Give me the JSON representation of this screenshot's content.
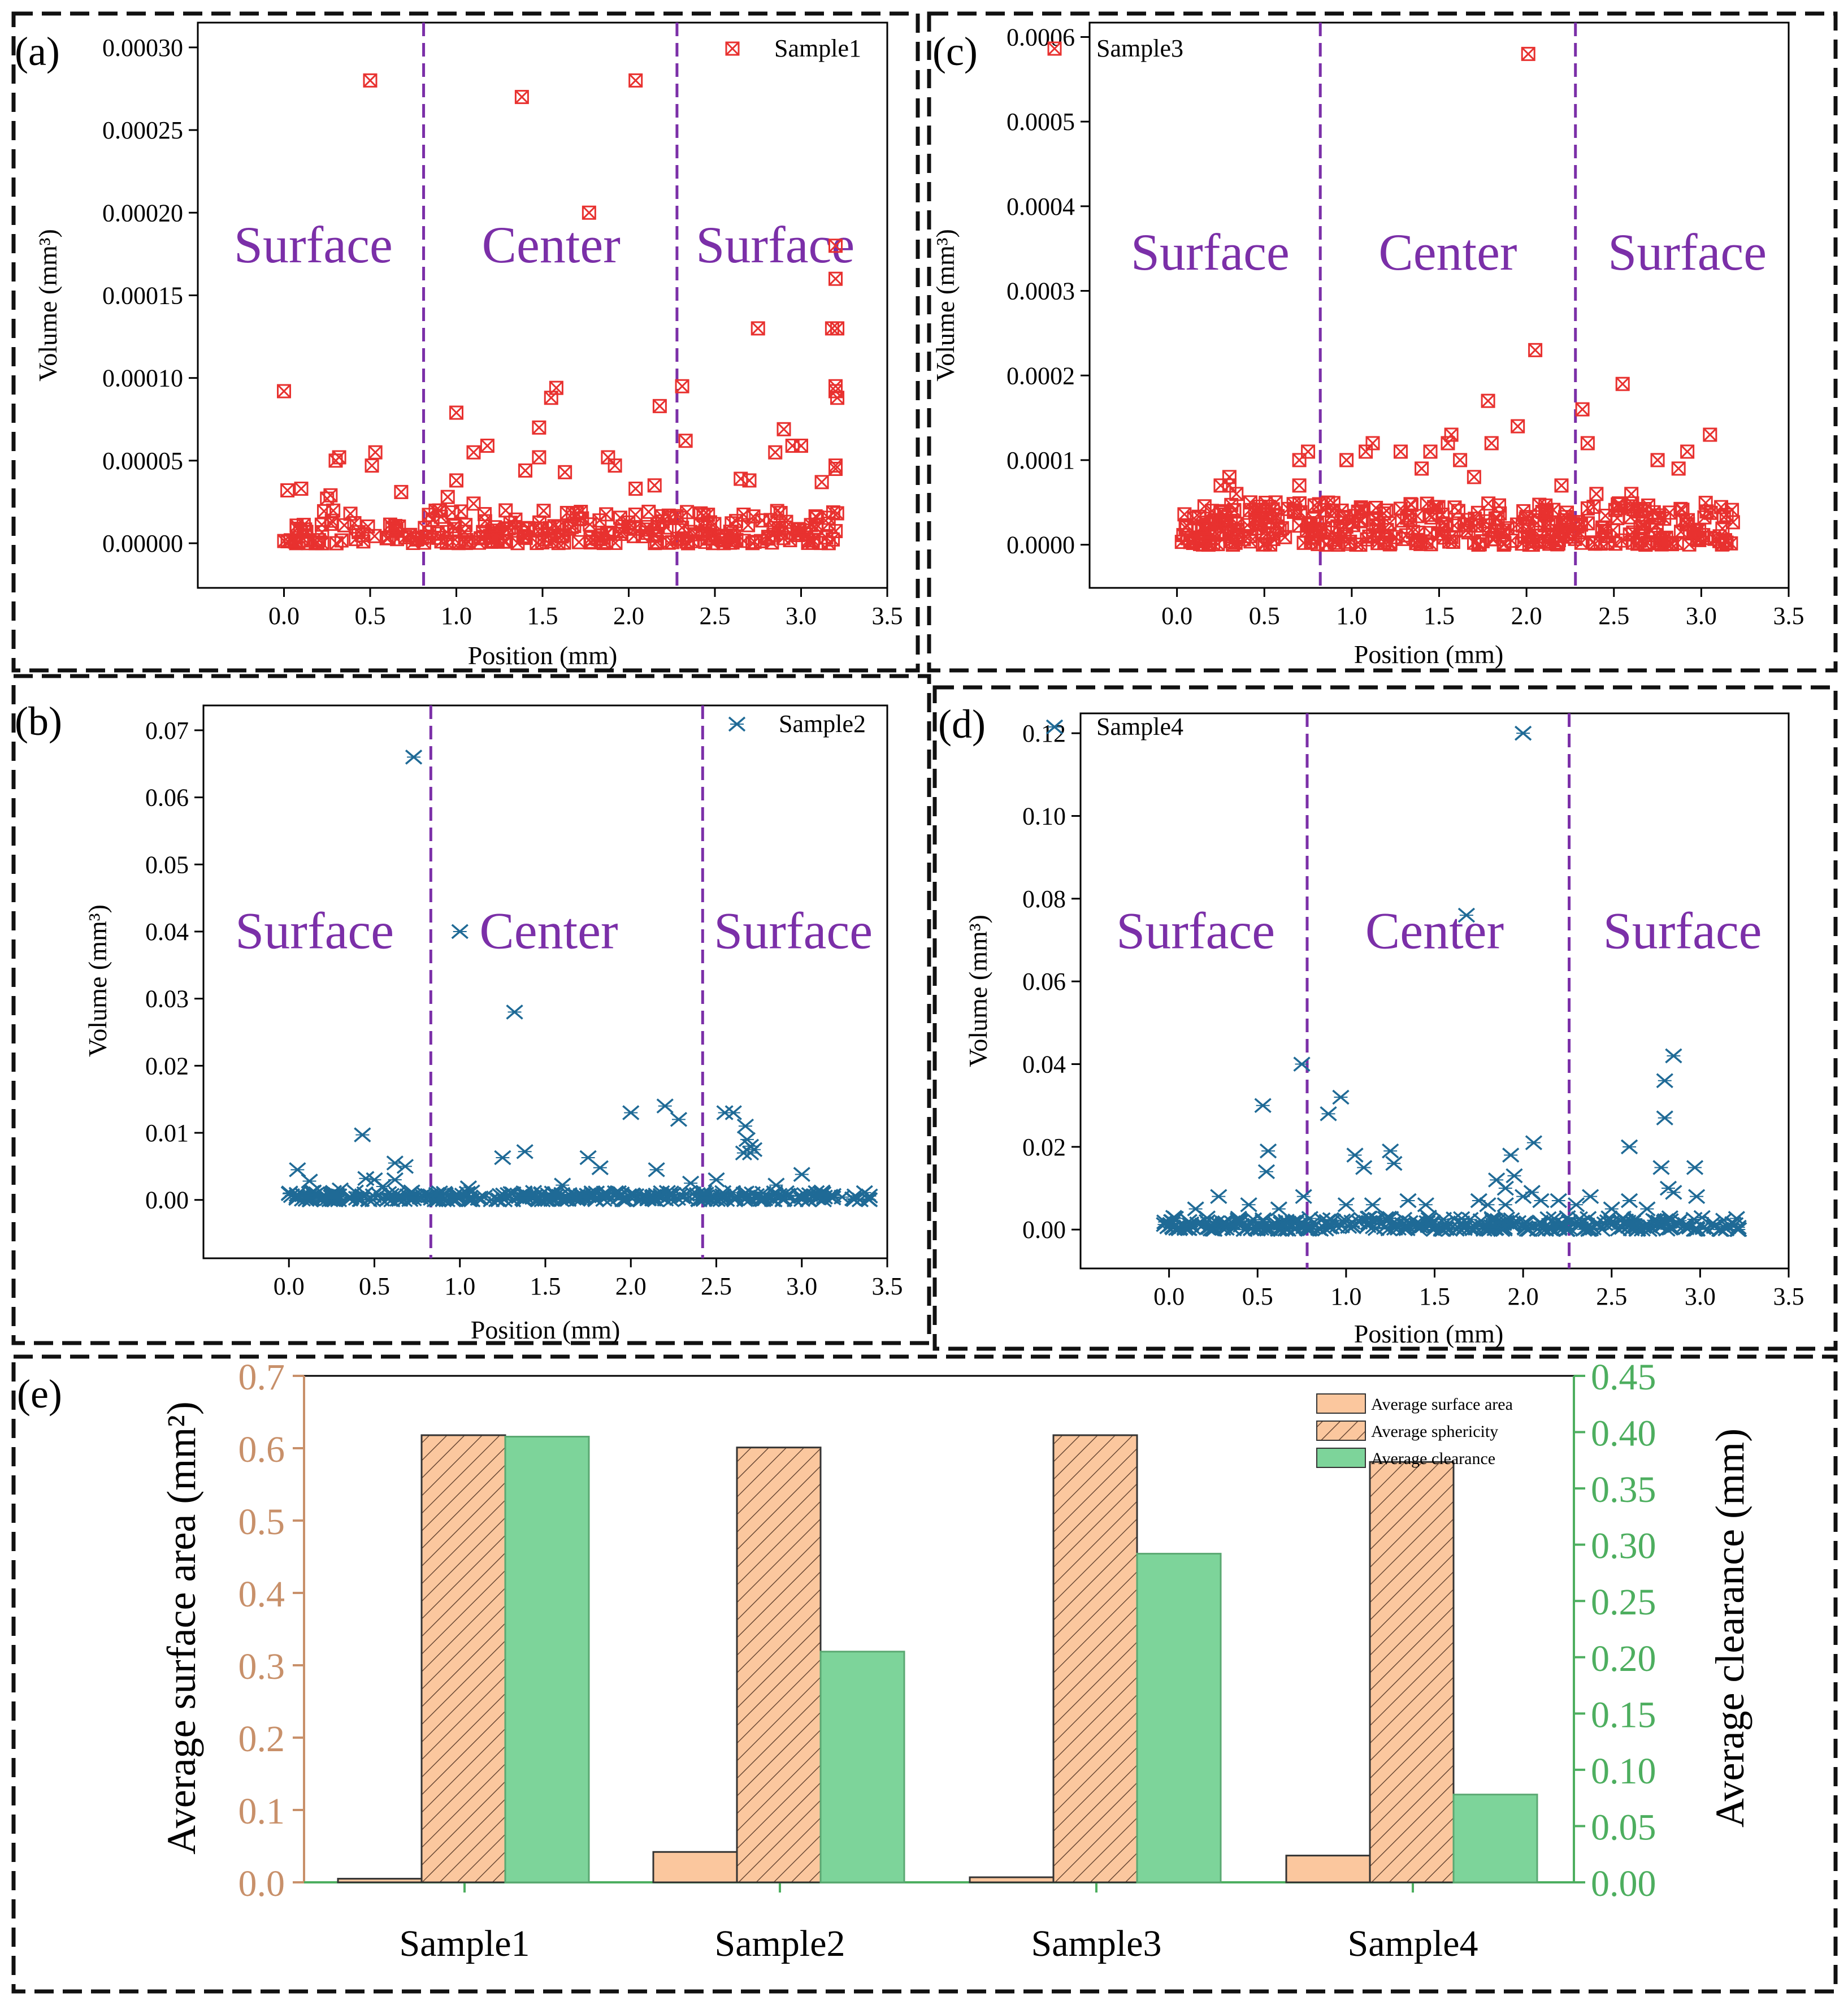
{
  "colors": {
    "scatter_red": "#e8312f",
    "scatter_blue": "#1f6a96",
    "divider": "#7b2fa8",
    "region_text": "#7b2fa8",
    "bar_orange": "#fbc79e",
    "bar_green": "#7dd49a",
    "axis_left_e": "#c8906a",
    "axis_right_e": "#4dae5f"
  },
  "chart_data": [
    {
      "panel_label": "(a)",
      "type": "scatter",
      "series": [
        {
          "name": "Sample1",
          "marker": "boxed-x",
          "color": "#e8312f"
        }
      ],
      "xlabel": "Position (mm)",
      "ylabel": "Volume (mm³)",
      "xlim": [
        -0.5,
        3.5
      ],
      "ylim": [
        -2.7e-05,
        0.000315
      ],
      "xticks": [
        0.0,
        0.5,
        1.0,
        1.5,
        2.0,
        2.5,
        3.0,
        3.5
      ],
      "xtick_labels": [
        "0.0",
        "0.5",
        "1.0",
        "1.5",
        "2.0",
        "2.5",
        "3.0",
        "3.5"
      ],
      "yticks": [
        0.0,
        5e-05,
        0.0001,
        0.00015,
        0.0002,
        0.00025,
        0.0003
      ],
      "ytick_labels": [
        "0.00000",
        "0.00005",
        "0.00010",
        "0.00015",
        "0.00020",
        "0.00025",
        "0.00030"
      ],
      "dividers_x": [
        0.81,
        2.28
      ],
      "regions": [
        {
          "label": "Surface",
          "x": 0.17,
          "y": 0.00017
        },
        {
          "label": "Center",
          "x": 1.55,
          "y": 0.00017
        },
        {
          "label": "Surface",
          "x": 2.85,
          "y": 0.00017
        }
      ],
      "dense_cluster": {
        "x_range": [
          0.0,
          3.22
        ],
        "y_range": [
          0.0,
          2e-05
        ],
        "count": 260,
        "seed": 11
      },
      "points": [
        [
          0.5,
          0.00028
        ],
        [
          1.38,
          0.00027
        ],
        [
          2.04,
          0.00028
        ],
        [
          1.77,
          0.0002
        ],
        [
          3.2,
          0.00018
        ],
        [
          3.2,
          0.00016
        ],
        [
          2.75,
          0.00013
        ],
        [
          3.18,
          0.00013
        ],
        [
          3.21,
          0.00013
        ],
        [
          0.0,
          9.2e-05
        ],
        [
          1.0,
          7.9e-05
        ],
        [
          1.58,
          9.4e-05
        ],
        [
          1.55,
          8.8e-05
        ],
        [
          2.18,
          8.3e-05
        ],
        [
          2.31,
          9.5e-05
        ],
        [
          3.2,
          9.5e-05
        ],
        [
          3.2,
          9.2e-05
        ],
        [
          3.21,
          8.8e-05
        ],
        [
          0.3,
          5e-05
        ],
        [
          0.32,
          5.2e-05
        ],
        [
          0.53,
          5.5e-05
        ],
        [
          0.51,
          4.7e-05
        ],
        [
          0.68,
          3.1e-05
        ],
        [
          1.18,
          5.9e-05
        ],
        [
          1.1,
          5.5e-05
        ],
        [
          1.48,
          7e-05
        ],
        [
          1.48,
          5.2e-05
        ],
        [
          1.88,
          5.2e-05
        ],
        [
          1.92,
          4.7e-05
        ],
        [
          1.4,
          4.4e-05
        ],
        [
          1.63,
          4.3e-05
        ],
        [
          2.33,
          6.2e-05
        ],
        [
          2.15,
          3.5e-05
        ],
        [
          2.65,
          3.9e-05
        ],
        [
          2.7,
          3.8e-05
        ],
        [
          2.9,
          6.9e-05
        ],
        [
          2.95,
          5.9e-05
        ],
        [
          3.0,
          5.9e-05
        ],
        [
          2.85,
          5.5e-05
        ],
        [
          3.2,
          4.7e-05
        ],
        [
          3.2,
          4.5e-05
        ],
        [
          3.12,
          3.7e-05
        ],
        [
          1.0,
          3.8e-05
        ],
        [
          0.1,
          3.3e-05
        ],
        [
          0.02,
          3.2e-05
        ],
        [
          0.27,
          2.9e-05
        ],
        [
          0.25,
          2.7e-05
        ],
        [
          0.95,
          2.8e-05
        ],
        [
          1.1,
          2.4e-05
        ],
        [
          2.04,
          3.3e-05
        ]
      ]
    },
    {
      "panel_label": "(b)",
      "type": "scatter",
      "series": [
        {
          "name": "Sample2",
          "marker": "star-x",
          "color": "#1f6a96"
        }
      ],
      "xlabel": "Position (mm)",
      "ylabel": "Volume (mm³)",
      "xlim": [
        -0.5,
        3.5
      ],
      "ylim": [
        -0.0087,
        0.0737
      ],
      "xticks": [
        0.0,
        0.5,
        1.0,
        1.5,
        2.0,
        2.5,
        3.0,
        3.5
      ],
      "xtick_labels": [
        "0.0",
        "0.5",
        "1.0",
        "1.5",
        "2.0",
        "2.5",
        "3.0",
        "3.5"
      ],
      "yticks": [
        0.0,
        0.01,
        0.02,
        0.03,
        0.04,
        0.05,
        0.06,
        0.07
      ],
      "ytick_labels": [
        "0.00",
        "0.01",
        "0.02",
        "0.03",
        "0.04",
        "0.05",
        "0.06",
        "0.07"
      ],
      "dividers_x": [
        0.83,
        2.42
      ],
      "regions": [
        {
          "label": "Surface",
          "x": 0.15,
          "y": 0.0375
        },
        {
          "label": "Center",
          "x": 1.52,
          "y": 0.0375
        },
        {
          "label": "Surface",
          "x": 2.95,
          "y": 0.0375
        }
      ],
      "dense_cluster": {
        "x_range": [
          0.0,
          3.4
        ],
        "y_range": [
          0.0,
          0.0012
        ],
        "count": 300,
        "seed": 23
      },
      "points": [
        [
          0.73,
          0.066
        ],
        [
          1.0,
          0.04
        ],
        [
          1.32,
          0.028
        ],
        [
          2.0,
          0.013
        ],
        [
          2.2,
          0.014
        ],
        [
          2.28,
          0.012
        ],
        [
          2.55,
          0.013
        ],
        [
          2.6,
          0.013
        ],
        [
          2.67,
          0.011
        ],
        [
          2.68,
          0.009
        ],
        [
          2.7,
          0.008
        ],
        [
          2.66,
          0.007
        ],
        [
          2.7,
          0.007
        ],
        [
          2.72,
          0.0075
        ],
        [
          0.43,
          0.0097
        ],
        [
          1.38,
          0.0072
        ],
        [
          1.25,
          0.0063
        ],
        [
          1.75,
          0.0063
        ],
        [
          1.82,
          0.0048
        ],
        [
          2.15,
          0.0045
        ],
        [
          0.62,
          0.0055
        ],
        [
          0.68,
          0.005
        ],
        [
          0.05,
          0.0045
        ],
        [
          0.45,
          0.0032
        ],
        [
          0.5,
          0.003
        ],
        [
          0.62,
          0.003
        ],
        [
          3.0,
          0.0038
        ],
        [
          0.12,
          0.0028
        ],
        [
          0.55,
          0.002
        ],
        [
          0.3,
          0.0015
        ],
        [
          1.05,
          0.0018
        ],
        [
          1.6,
          0.0022
        ],
        [
          2.35,
          0.0025
        ],
        [
          2.85,
          0.0022
        ],
        [
          2.5,
          0.003
        ]
      ]
    },
    {
      "panel_label": "(c)",
      "type": "scatter",
      "series": [
        {
          "name": "Sample3",
          "marker": "boxed-x",
          "color": "#e8312f"
        }
      ],
      "xlabel": "Position (mm)",
      "ylabel": "Volume (mm³)",
      "xlim": [
        -0.5,
        3.5
      ],
      "ylim": [
        -5.1e-05,
        0.000617
      ],
      "xticks": [
        0.0,
        0.5,
        1.0,
        1.5,
        2.0,
        2.5,
        3.0,
        3.5
      ],
      "xtick_labels": [
        "0.0",
        "0.5",
        "1.0",
        "1.5",
        "2.0",
        "2.5",
        "3.0",
        "3.5"
      ],
      "yticks": [
        0.0,
        0.0001,
        0.0002,
        0.0003,
        0.0004,
        0.0005,
        0.0006
      ],
      "ytick_labels": [
        "0.0000",
        "0.0001",
        "0.0002",
        "0.0003",
        "0.0004",
        "0.0005",
        "0.0006"
      ],
      "dividers_x": [
        0.82,
        2.28
      ],
      "regions": [
        {
          "label": "Surface",
          "x": 0.19,
          "y": 0.000325
        },
        {
          "label": "Center",
          "x": 1.55,
          "y": 0.000325
        },
        {
          "label": "Surface",
          "x": 2.92,
          "y": 0.000325
        }
      ],
      "dense_cluster": {
        "x_range": [
          0.0,
          3.2
        ],
        "y_range": [
          0.0,
          5e-05
        ],
        "count": 380,
        "seed": 37
      },
      "points": [
        [
          2.01,
          0.00058
        ],
        [
          2.05,
          0.00023
        ],
        [
          1.78,
          0.00017
        ],
        [
          2.55,
          0.00019
        ],
        [
          2.32,
          0.00016
        ],
        [
          1.95,
          0.00014
        ],
        [
          3.05,
          0.00013
        ],
        [
          1.57,
          0.00013
        ],
        [
          1.55,
          0.00012
        ],
        [
          1.8,
          0.00012
        ],
        [
          1.12,
          0.00012
        ],
        [
          1.08,
          0.00011
        ],
        [
          1.28,
          0.00011
        ],
        [
          2.35,
          0.00012
        ],
        [
          2.92,
          0.00011
        ],
        [
          2.75,
          0.0001
        ],
        [
          0.7,
          0.0001
        ],
        [
          0.75,
          0.00011
        ],
        [
          0.97,
          0.0001
        ],
        [
          1.45,
          0.00011
        ],
        [
          1.62,
          0.0001
        ],
        [
          2.87,
          9e-05
        ],
        [
          0.3,
          8e-05
        ],
        [
          0.25,
          7e-05
        ],
        [
          0.3,
          7e-05
        ],
        [
          0.42,
          5e-05
        ],
        [
          0.34,
          6e-05
        ],
        [
          0.7,
          7e-05
        ],
        [
          1.4,
          9e-05
        ],
        [
          1.7,
          8e-05
        ],
        [
          2.2,
          7e-05
        ],
        [
          2.6,
          6e-05
        ],
        [
          2.4,
          6e-05
        ],
        [
          0.05,
          2e-05
        ],
        [
          0.15,
          2e-05
        ],
        [
          0.45,
          3e-05
        ],
        [
          0.2,
          4e-05
        ]
      ]
    },
    {
      "panel_label": "(d)",
      "type": "scatter",
      "series": [
        {
          "name": "Sample4",
          "marker": "star-x",
          "color": "#1f6a96"
        }
      ],
      "xlabel": "Position (mm)",
      "ylabel": "Volume (mm³)",
      "xlim": [
        -0.5,
        3.5
      ],
      "ylim": [
        -0.0094,
        0.1248
      ],
      "xticks": [
        0.0,
        0.5,
        1.0,
        1.5,
        2.0,
        2.5,
        3.0,
        3.5
      ],
      "xtick_labels": [
        "0.0",
        "0.5",
        "1.0",
        "1.5",
        "2.0",
        "2.5",
        "3.0",
        "3.5"
      ],
      "yticks": [
        0.0,
        0.02,
        0.04,
        0.06,
        0.08,
        0.1,
        0.12
      ],
      "ytick_labels": [
        "0.00",
        "0.02",
        "0.04",
        "0.06",
        "0.08",
        "0.10",
        "0.12"
      ],
      "dividers_x": [
        0.78,
        2.26
      ],
      "regions": [
        {
          "label": "Surface",
          "x": 0.15,
          "y": 0.068
        },
        {
          "label": "Center",
          "x": 1.5,
          "y": 0.068
        },
        {
          "label": "Surface",
          "x": 2.9,
          "y": 0.068
        }
      ],
      "dense_cluster": {
        "x_range": [
          -0.05,
          3.22
        ],
        "y_range": [
          0.0,
          0.003
        ],
        "count": 320,
        "seed": 53
      },
      "points": [
        [
          2.0,
          0.12
        ],
        [
          1.68,
          0.076
        ],
        [
          0.75,
          0.04
        ],
        [
          2.85,
          0.042
        ],
        [
          2.8,
          0.036
        ],
        [
          2.8,
          0.027
        ],
        [
          0.97,
          0.032
        ],
        [
          0.53,
          0.03
        ],
        [
          0.9,
          0.028
        ],
        [
          0.56,
          0.019
        ],
        [
          0.55,
          0.014
        ],
        [
          2.06,
          0.021
        ],
        [
          1.93,
          0.018
        ],
        [
          1.05,
          0.018
        ],
        [
          1.25,
          0.019
        ],
        [
          1.27,
          0.016
        ],
        [
          1.1,
          0.015
        ],
        [
          2.6,
          0.02
        ],
        [
          2.78,
          0.015
        ],
        [
          2.97,
          0.015
        ],
        [
          1.95,
          0.013
        ],
        [
          1.85,
          0.012
        ],
        [
          1.9,
          0.01
        ],
        [
          2.05,
          0.009
        ],
        [
          2.82,
          0.01
        ],
        [
          2.85,
          0.009
        ],
        [
          2.98,
          0.008
        ],
        [
          2.0,
          0.008
        ],
        [
          0.76,
          0.008
        ],
        [
          0.28,
          0.008
        ],
        [
          0.15,
          0.005
        ],
        [
          0.45,
          0.006
        ],
        [
          1.35,
          0.007
        ],
        [
          1.45,
          0.006
        ],
        [
          2.38,
          0.008
        ],
        [
          1.75,
          0.007
        ],
        [
          1.8,
          0.006
        ],
        [
          1.9,
          0.006
        ],
        [
          2.1,
          0.007
        ],
        [
          2.2,
          0.007
        ],
        [
          0.62,
          0.005
        ],
        [
          1.0,
          0.006
        ],
        [
          1.15,
          0.006
        ],
        [
          2.3,
          0.006
        ],
        [
          2.5,
          0.005
        ],
        [
          2.6,
          0.007
        ],
        [
          2.7,
          0.005
        ]
      ]
    },
    {
      "panel_label": "(e)",
      "type": "bar",
      "categories": [
        "Sample1",
        "Sample2",
        "Sample3",
        "Sample4"
      ],
      "series": [
        {
          "name": "Average surface area",
          "axis": "left",
          "style": "solid",
          "color": "#fbc79e",
          "values": [
            0.005,
            0.042,
            0.007,
            0.037
          ]
        },
        {
          "name": "Average sphericity",
          "axis": "left",
          "style": "hatched",
          "color": "#fbc79e",
          "values": [
            0.618,
            0.601,
            0.618,
            0.581
          ]
        },
        {
          "name": "Average clearance",
          "axis": "right",
          "style": "solid",
          "color": "#7dd49a",
          "values": [
            0.396,
            0.205,
            0.292,
            0.078
          ]
        }
      ],
      "ylabel_left": "Average surface area (mm²)",
      "ylabel_right": "Average clearance (mm)",
      "ylim_left": [
        0.0,
        0.7
      ],
      "ylim_right": [
        0.0,
        0.45
      ],
      "yticks_left": [
        "0.0",
        "0.1",
        "0.2",
        "0.3",
        "0.4",
        "0.5",
        "0.6",
        "0.7"
      ],
      "yticks_right": [
        "0.00",
        "0.05",
        "0.10",
        "0.15",
        "0.20",
        "0.25",
        "0.30",
        "0.35",
        "0.40",
        "0.45"
      ]
    }
  ]
}
